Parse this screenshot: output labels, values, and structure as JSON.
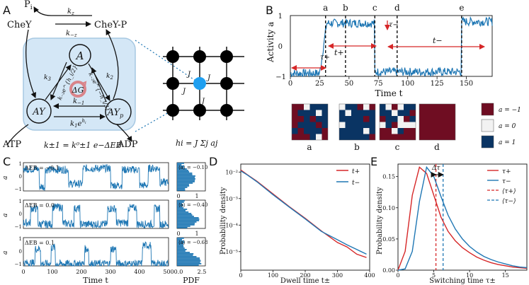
{
  "panel_labels": {
    "A": "A",
    "B": "B",
    "C": "C",
    "D": "D",
    "E": "E"
  },
  "panel_a": {
    "pi": "P",
    "pi_sub": "i",
    "chey": "CheY",
    "cheyp": "CheY-P",
    "k_z": "k",
    "k_z_sub": "z",
    "k_mz": "k",
    "k_mz_sub": "−z",
    "node_a": "A",
    "node_ay": "AY",
    "node_ayp": "AY",
    "node_ayp_sub": "p",
    "k3": "k",
    "k3_sub": "3",
    "k2": "k",
    "k2_sub": "2",
    "km3": "k₋₃e^{h_i/2}",
    "km2": "k₋₂e^{−h_i/2}",
    "delta_g": "ΔG",
    "km1": "k",
    "km1_sub": "−1",
    "k1": "k",
    "k1_sub": "1",
    "k1_exp": "h",
    "k1_exp_sub": "i",
    "atp": "ATP",
    "adp": "ADP",
    "formula": "k±1 = k⁰±1 e−ΔEB",
    "lattice_j": "J",
    "hi_formula": "hi = J Σj aj"
  },
  "panel_b": {
    "ylabel": "Activity a",
    "xlabel": "Time t",
    "y_ticks": [
      "1",
      "0",
      "−1"
    ],
    "x_ticks": [
      "0",
      "25",
      "50",
      "75",
      "100",
      "125",
      "150"
    ],
    "event_labels": [
      "a",
      "b",
      "c",
      "d",
      "e"
    ],
    "tau_plus": "τ+",
    "tau_minus": "τ−",
    "t_plus": "t+",
    "t_minus": "t−",
    "snapshot_labels": [
      "a",
      "b",
      "c",
      "d"
    ],
    "legend": [
      "a = −1",
      "a = 0",
      "a = 1"
    ],
    "legend_colors": [
      "#6f0d22",
      "#f2f2f2",
      "#0a3463"
    ]
  },
  "panel_c": {
    "y_label": "a",
    "rows": [
      {
        "label": "ΔEB = −0.1",
        "mean": "⟨a⟩ = −0.10"
      },
      {
        "label": "ΔEB = 0.0",
        "mean": "⟨a⟩ = −0.40"
      },
      {
        "label": "ΔEB = 0.1",
        "mean": "⟨a⟩ = −0.68"
      }
    ],
    "y_ticks": [
      "1",
      "0",
      "−1"
    ],
    "x_ticks": [
      "0",
      "100",
      "200",
      "300",
      "400",
      "500"
    ],
    "xlabel": "Time t",
    "pdf_xlabel": "PDF",
    "pdf_ticks_top": [
      "0",
      "1"
    ],
    "pdf_ticks_bottom": [
      "0.0",
      "2.5"
    ]
  },
  "chart_data": [
    {
      "type": "line",
      "panel": "B",
      "title": "",
      "xlabel": "Time t",
      "ylabel": "Activity a",
      "xlim": [
        0,
        172
      ],
      "ylim": [
        -1,
        1
      ],
      "events": [
        {
          "label": "a",
          "x": 30
        },
        {
          "label": "b",
          "x": 47
        },
        {
          "label": "c",
          "x": 72
        },
        {
          "label": "d",
          "x": 91
        },
        {
          "label": "e",
          "x": 146
        }
      ],
      "segments": [
        {
          "t": [
            0,
            25
          ],
          "level": -0.9
        },
        {
          "t": [
            25,
            31
          ],
          "level": "rise"
        },
        {
          "t": [
            31,
            72
          ],
          "level": 0.75
        },
        {
          "t": [
            72,
            146
          ],
          "level": -0.85
        },
        {
          "t": [
            146,
            172
          ],
          "level": 0.8
        }
      ]
    },
    {
      "type": "line",
      "panel": "D",
      "title": "",
      "xlabel": "Dwell time t±",
      "ylabel": "Probability density",
      "yscale": "log",
      "xlim": [
        0,
        400
      ],
      "ylim": [
        2e-06,
        0.02
      ],
      "series": [
        {
          "name": "t+",
          "color": "#d62728",
          "x": [
            0,
            20,
            50,
            100,
            150,
            200,
            250,
            300,
            330,
            360,
            390
          ],
          "y": [
            0.012,
            0.008,
            0.0045,
            0.0015,
            0.0005,
            0.00018,
            6e-05,
            2.2e-05,
            1.5e-05,
            8e-06,
            6e-06
          ]
        },
        {
          "name": "t−",
          "color": "#1f77b4",
          "x": [
            0,
            20,
            50,
            100,
            150,
            200,
            250,
            300,
            330,
            360,
            390
          ],
          "y": [
            0.011,
            0.0078,
            0.0043,
            0.0014,
            0.00048,
            0.00017,
            5.8e-05,
            2.8e-05,
            1.8e-05,
            1.2e-05,
            8e-06
          ]
        }
      ],
      "x_ticks": [
        "0",
        "100",
        "200",
        "300",
        "400"
      ],
      "y_ticks": [
        "10⁻²",
        "10⁻³",
        "10⁻⁴",
        "10⁻⁵"
      ]
    },
    {
      "type": "line",
      "panel": "E",
      "title": "",
      "xlabel": "Switching time τ±",
      "ylabel": "Probability density",
      "xlim": [
        0,
        18
      ],
      "ylim": [
        0,
        0.17
      ],
      "series": [
        {
          "name": "τ+",
          "color": "#d62728",
          "x": [
            0,
            1,
            2,
            3,
            4,
            5,
            6,
            7,
            8,
            9,
            10,
            11,
            12,
            13,
            14,
            15,
            16,
            17,
            18
          ],
          "y": [
            0,
            0.03,
            0.12,
            0.165,
            0.155,
            0.12,
            0.085,
            0.062,
            0.047,
            0.036,
            0.028,
            0.021,
            0.016,
            0.012,
            0.009,
            0.007,
            0.005,
            0.004,
            0.003
          ]
        },
        {
          "name": "τ−",
          "color": "#1f77b4",
          "x": [
            0,
            1,
            2,
            3,
            4,
            5,
            6,
            7,
            8,
            9,
            10,
            11,
            12,
            13,
            14,
            15,
            16,
            17,
            18
          ],
          "y": [
            0,
            0.002,
            0.03,
            0.11,
            0.165,
            0.15,
            0.118,
            0.088,
            0.066,
            0.05,
            0.038,
            0.029,
            0.022,
            0.017,
            0.013,
            0.01,
            0.007,
            0.005,
            0.004
          ]
        }
      ],
      "means": [
        {
          "name": "⟨τ+⟩",
          "x": 5.3,
          "color": "#d62728"
        },
        {
          "name": "⟨τ−⟩",
          "x": 6.3,
          "color": "#1f77b4"
        }
      ],
      "annotation": "Δτ",
      "legend": [
        "τ+",
        "τ−",
        "⟨τ+⟩",
        "⟨τ−⟩"
      ],
      "x_ticks": [
        "0",
        "5",
        "10",
        "15"
      ],
      "y_ticks": [
        "0.00",
        "0.05",
        "0.10",
        "0.15"
      ]
    }
  ]
}
